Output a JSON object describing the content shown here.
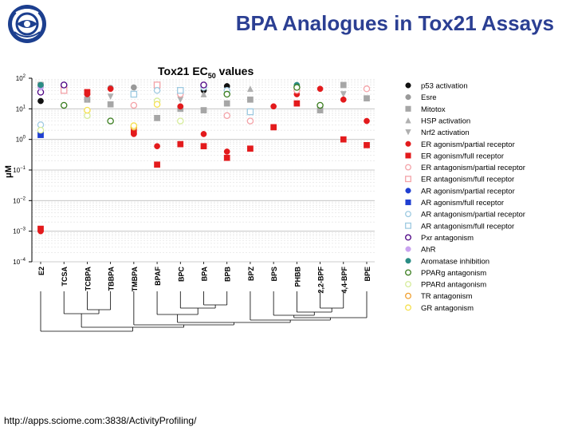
{
  "slide": {
    "title": "BPA Analogues in Tox21 Assays",
    "source_url": "http://apps.sciome.com:3838/ActivityProfiling/"
  },
  "chart_data": {
    "type": "scatter",
    "title": "Tox21 EC",
    "title_subscript": "50",
    "title_suffix": " values",
    "ylabel": "μM",
    "yscale": "log",
    "ylim": [
      0.0001,
      100
    ],
    "yticks": [
      {
        "value": 100,
        "base": "10",
        "exp": "2"
      },
      {
        "value": 10,
        "base": "10",
        "exp": "1"
      },
      {
        "value": 1,
        "base": "10",
        "exp": "0"
      },
      {
        "value": 0.1,
        "base": "10",
        "exp": "−1"
      },
      {
        "value": 0.01,
        "base": "10",
        "exp": "−2"
      },
      {
        "value": 0.001,
        "base": "10",
        "exp": "−3"
      },
      {
        "value": 0.0001,
        "base": "10",
        "exp": "−4"
      }
    ],
    "categories": [
      "E2",
      "TCSA",
      "TCBPA",
      "TBBPA",
      "TMBPA",
      "BPAF",
      "BPC",
      "BPA",
      "BPB",
      "BPZ",
      "BPS",
      "PHBB",
      "2,2-BPF",
      "4,4-BPF",
      "BPE"
    ],
    "legend_position": "right",
    "series": [
      {
        "name": "p53 activation",
        "marker": "circle",
        "filled": true,
        "color": "#111111",
        "points": [
          {
            "x": "E2",
            "y": 18
          },
          {
            "x": "BPAF",
            "y": 50
          },
          {
            "x": "BPB",
            "y": 55
          },
          {
            "x": "BPA",
            "y": 40
          }
        ]
      },
      {
        "name": "Esre",
        "marker": "circle",
        "filled": true,
        "color": "#999999",
        "points": [
          {
            "x": "E2",
            "y": 55
          },
          {
            "x": "TBBPA",
            "y": 48
          },
          {
            "x": "TMBPA",
            "y": 50
          },
          {
            "x": "BPA",
            "y": 55
          }
        ]
      },
      {
        "name": "Mitotox",
        "marker": "square",
        "filled": true,
        "color": "#a6a6a6",
        "points": [
          {
            "x": "E2",
            "y": 60
          },
          {
            "x": "TCBPA",
            "y": 20
          },
          {
            "x": "TBBPA",
            "y": 14
          },
          {
            "x": "BPAF",
            "y": 5
          },
          {
            "x": "BPC",
            "y": 10
          },
          {
            "x": "BPA",
            "y": 9
          },
          {
            "x": "BPB",
            "y": 15
          },
          {
            "x": "BPZ",
            "y": 20
          },
          {
            "x": "2,2-BPF",
            "y": 9
          },
          {
            "x": "4,4-BPF",
            "y": 60
          },
          {
            "x": "BPE",
            "y": 22
          }
        ]
      },
      {
        "name": "HSP activation",
        "marker": "triangle-up",
        "filled": true,
        "color": "#b0b0b0",
        "points": [
          {
            "x": "BPA",
            "y": 30
          },
          {
            "x": "BPZ",
            "y": 45
          }
        ]
      },
      {
        "name": "Nrf2 activation",
        "marker": "triangle-down",
        "filled": true,
        "color": "#b0b0b0",
        "points": [
          {
            "x": "TCBPA",
            "y": 20
          },
          {
            "x": "TBBPA",
            "y": 25
          },
          {
            "x": "BPC",
            "y": 20
          },
          {
            "x": "BPB",
            "y": 35
          },
          {
            "x": "4,4-BPF",
            "y": 30
          }
        ]
      },
      {
        "name": "ER agonism/partial receptor",
        "marker": "circle",
        "filled": true,
        "color": "#e31a1c",
        "points": [
          {
            "x": "E2",
            "y": 0.001
          },
          {
            "x": "TCBPA",
            "y": 30
          },
          {
            "x": "TBBPA",
            "y": 45
          },
          {
            "x": "TMBPA",
            "y": 1.5
          },
          {
            "x": "BPAF",
            "y": 0.6
          },
          {
            "x": "BPC",
            "y": 12
          },
          {
            "x": "BPA",
            "y": 1.5
          },
          {
            "x": "BPB",
            "y": 0.4
          },
          {
            "x": "BPS",
            "y": 12
          },
          {
            "x": "PHBB",
            "y": 30
          },
          {
            "x": "2,2-BPF",
            "y": 45
          },
          {
            "x": "4,4-BPF",
            "y": 20
          },
          {
            "x": "BPE",
            "y": 4
          }
        ]
      },
      {
        "name": "ER agonism/full receptor",
        "marker": "square",
        "filled": true,
        "color": "#e31a1c",
        "points": [
          {
            "x": "E2",
            "y": 0.0012
          },
          {
            "x": "TCBPA",
            "y": 35
          },
          {
            "x": "TMBPA",
            "y": 1.8
          },
          {
            "x": "BPAF",
            "y": 0.15
          },
          {
            "x": "BPC",
            "y": 0.7
          },
          {
            "x": "BPA",
            "y": 0.6
          },
          {
            "x": "BPB",
            "y": 0.25
          },
          {
            "x": "BPZ",
            "y": 0.5
          },
          {
            "x": "BPS",
            "y": 2.5
          },
          {
            "x": "PHBB",
            "y": 15
          },
          {
            "x": "4,4-BPF",
            "y": 1
          },
          {
            "x": "BPE",
            "y": 0.65
          }
        ]
      },
      {
        "name": "ER antagonism/partial receptor",
        "marker": "circle",
        "filled": false,
        "color": "#f4a3a8",
        "points": [
          {
            "x": "TCSA",
            "y": 55
          },
          {
            "x": "TMBPA",
            "y": 13
          },
          {
            "x": "BPC",
            "y": 30
          },
          {
            "x": "BPB",
            "y": 6
          },
          {
            "x": "BPZ",
            "y": 4
          },
          {
            "x": "PHBB",
            "y": 40
          },
          {
            "x": "BPE",
            "y": 45
          }
        ]
      },
      {
        "name": "ER antagonism/full receptor",
        "marker": "square",
        "filled": false,
        "color": "#f4a3a8",
        "points": [
          {
            "x": "TCSA",
            "y": 40
          },
          {
            "x": "BPAF",
            "y": 60
          }
        ]
      },
      {
        "name": "AR agonism/partial receptor",
        "marker": "circle",
        "filled": true,
        "color": "#1f3fd1",
        "points": [
          {
            "x": "E2",
            "y": 1.8
          }
        ]
      },
      {
        "name": "AR agonism/full receptor",
        "marker": "square",
        "filled": true,
        "color": "#1f3fd1",
        "points": [
          {
            "x": "E2",
            "y": 1.4
          }
        ]
      },
      {
        "name": "AR antagonism/partial receptor",
        "marker": "circle",
        "filled": false,
        "color": "#9ecae1",
        "points": [
          {
            "x": "E2",
            "y": 3
          },
          {
            "x": "BPAF",
            "y": 40
          },
          {
            "x": "BPA",
            "y": 50
          },
          {
            "x": "BPB",
            "y": 40
          }
        ]
      },
      {
        "name": "AR antagonism/full receptor",
        "marker": "square",
        "filled": false,
        "color": "#9ecae1",
        "points": [
          {
            "x": "TMBPA",
            "y": 30
          },
          {
            "x": "BPC",
            "y": 40
          },
          {
            "x": "BPZ",
            "y": 8
          }
        ]
      },
      {
        "name": "Pxr antagonism",
        "marker": "circle",
        "filled": false,
        "color": "#4b0082",
        "points": [
          {
            "x": "E2",
            "y": 35
          },
          {
            "x": "TCSA",
            "y": 60
          },
          {
            "x": "BPA",
            "y": 60
          }
        ]
      },
      {
        "name": "AhR",
        "marker": "circle",
        "filled": true,
        "color": "#c9a3f0",
        "points": [
          {
            "x": "E2",
            "y": 50
          }
        ]
      },
      {
        "name": "Aromatase inhibition",
        "marker": "circle",
        "filled": true,
        "color": "#2a8c84",
        "points": [
          {
            "x": "E2",
            "y": 60
          },
          {
            "x": "PHBB",
            "y": 60
          }
        ]
      },
      {
        "name": "PPARg antagonism",
        "marker": "circle",
        "filled": false,
        "color": "#3a7d1e",
        "points": [
          {
            "x": "TCSA",
            "y": 13
          },
          {
            "x": "TBBPA",
            "y": 4
          },
          {
            "x": "BPB",
            "y": 30
          },
          {
            "x": "PHBB",
            "y": 50
          },
          {
            "x": "2,2-BPF",
            "y": 13
          }
        ]
      },
      {
        "name": "PPARd antagonism",
        "marker": "circle",
        "filled": false,
        "color": "#d6ec9b",
        "points": [
          {
            "x": "E2",
            "y": 2
          },
          {
            "x": "TCBPA",
            "y": 6
          },
          {
            "x": "BPAF",
            "y": 18
          },
          {
            "x": "BPC",
            "y": 4
          }
        ]
      },
      {
        "name": "TR antagonism",
        "marker": "circle",
        "filled": false,
        "color": "#f0a030",
        "points": [
          {
            "x": "TMBPA",
            "y": 2.5
          }
        ]
      },
      {
        "name": "GR antagonism",
        "marker": "circle",
        "filled": false,
        "color": "#f5e050",
        "points": [
          {
            "x": "TCBPA",
            "y": 9
          },
          {
            "x": "TMBPA",
            "y": 2.8
          },
          {
            "x": "BPAF",
            "y": 14
          }
        ]
      }
    ],
    "dendrogram": {
      "leaf_order": [
        "E2",
        "TCSA",
        "TCBPA",
        "TBBPA",
        "TMBPA",
        "BPAF",
        "BPC",
        "BPA",
        "BPB",
        "BPZ",
        "BPS",
        "PHBB",
        "2,2-BPF",
        "4,4-BPF",
        "BPE"
      ]
    }
  }
}
